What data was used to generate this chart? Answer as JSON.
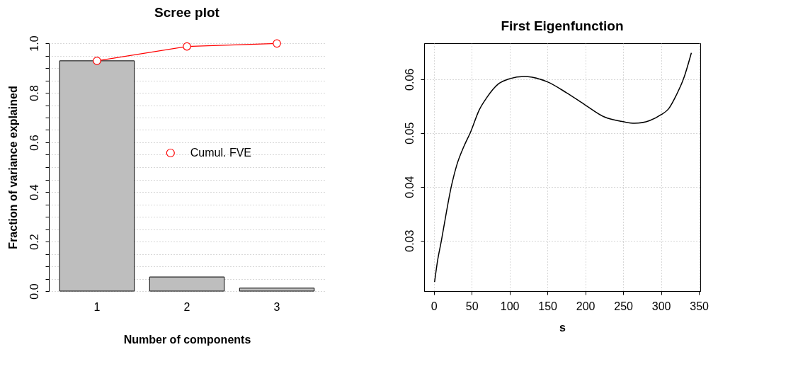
{
  "chart_data": [
    {
      "type": "bar",
      "title": "Scree plot",
      "xlabel": "Number of components",
      "ylabel": "Fraction of variance explained",
      "categories": [
        "1",
        "2",
        "3"
      ],
      "series": [
        {
          "type": "bar",
          "color": "#bebebe",
          "values": [
            0.929,
            0.057,
            0.012
          ]
        },
        {
          "type": "line",
          "name": "Cumul. FVE",
          "color": "#ff0000",
          "values": [
            0.929,
            0.987,
            0.999
          ]
        }
      ],
      "ylim": [
        0,
        1
      ],
      "yticks": [
        {
          "value": 0,
          "label": "0.0"
        },
        {
          "value": 0.05,
          "label": null
        },
        {
          "value": 0.1,
          "label": null
        },
        {
          "value": 0.15,
          "label": null
        },
        0.2,
        {
          "value": 0.25,
          "label": null
        },
        {
          "value": 0.3,
          "label": null
        },
        {
          "value": 0.35,
          "label": null
        },
        0.4,
        {
          "value": 0.45,
          "label": null
        },
        {
          "value": 0.5,
          "label": null
        },
        {
          "value": 0.55,
          "label": null
        },
        0.6,
        {
          "value": 0.65,
          "label": null
        },
        {
          "value": 0.7,
          "label": null
        },
        {
          "value": 0.75,
          "label": null
        },
        0.8,
        {
          "value": 0.85,
          "label": null
        },
        {
          "value": 0.9,
          "label": null
        },
        {
          "value": 0.95,
          "label": null
        },
        {
          "value": 1,
          "label": "1.0"
        }
      ],
      "grid": "y",
      "legend": "right",
      "marker": "circle"
    },
    {
      "type": "line",
      "title": "First Eigenfunction",
      "xlabel": "s",
      "x": [
        1,
        5,
        10,
        15,
        23,
        30,
        40,
        48,
        60,
        70,
        85,
        100,
        119,
        150,
        175,
        200,
        225,
        250,
        265,
        285,
        300,
        310,
        320,
        330,
        340
      ],
      "series": [
        {
          "color": "#000000",
          "values": [
            0.0223,
            0.0263,
            0.03,
            0.034,
            0.04,
            0.0439,
            0.0476,
            0.05,
            0.0543,
            0.0566,
            0.0591,
            0.0601,
            0.0605,
            0.0595,
            0.0575,
            0.0552,
            0.053,
            0.0521,
            0.0518,
            0.0523,
            0.0534,
            0.0545,
            0.057,
            0.0602,
            0.0649
          ]
        }
      ],
      "xlim": [
        -12.8,
        351.8
      ],
      "ylim": [
        0.0206,
        0.0667
      ],
      "xticks": [
        0,
        50,
        100,
        150,
        200,
        250,
        300,
        350
      ],
      "yticks": [
        0.03,
        0.04,
        0.05,
        0.06
      ],
      "grid": true,
      "marker": "none"
    }
  ]
}
